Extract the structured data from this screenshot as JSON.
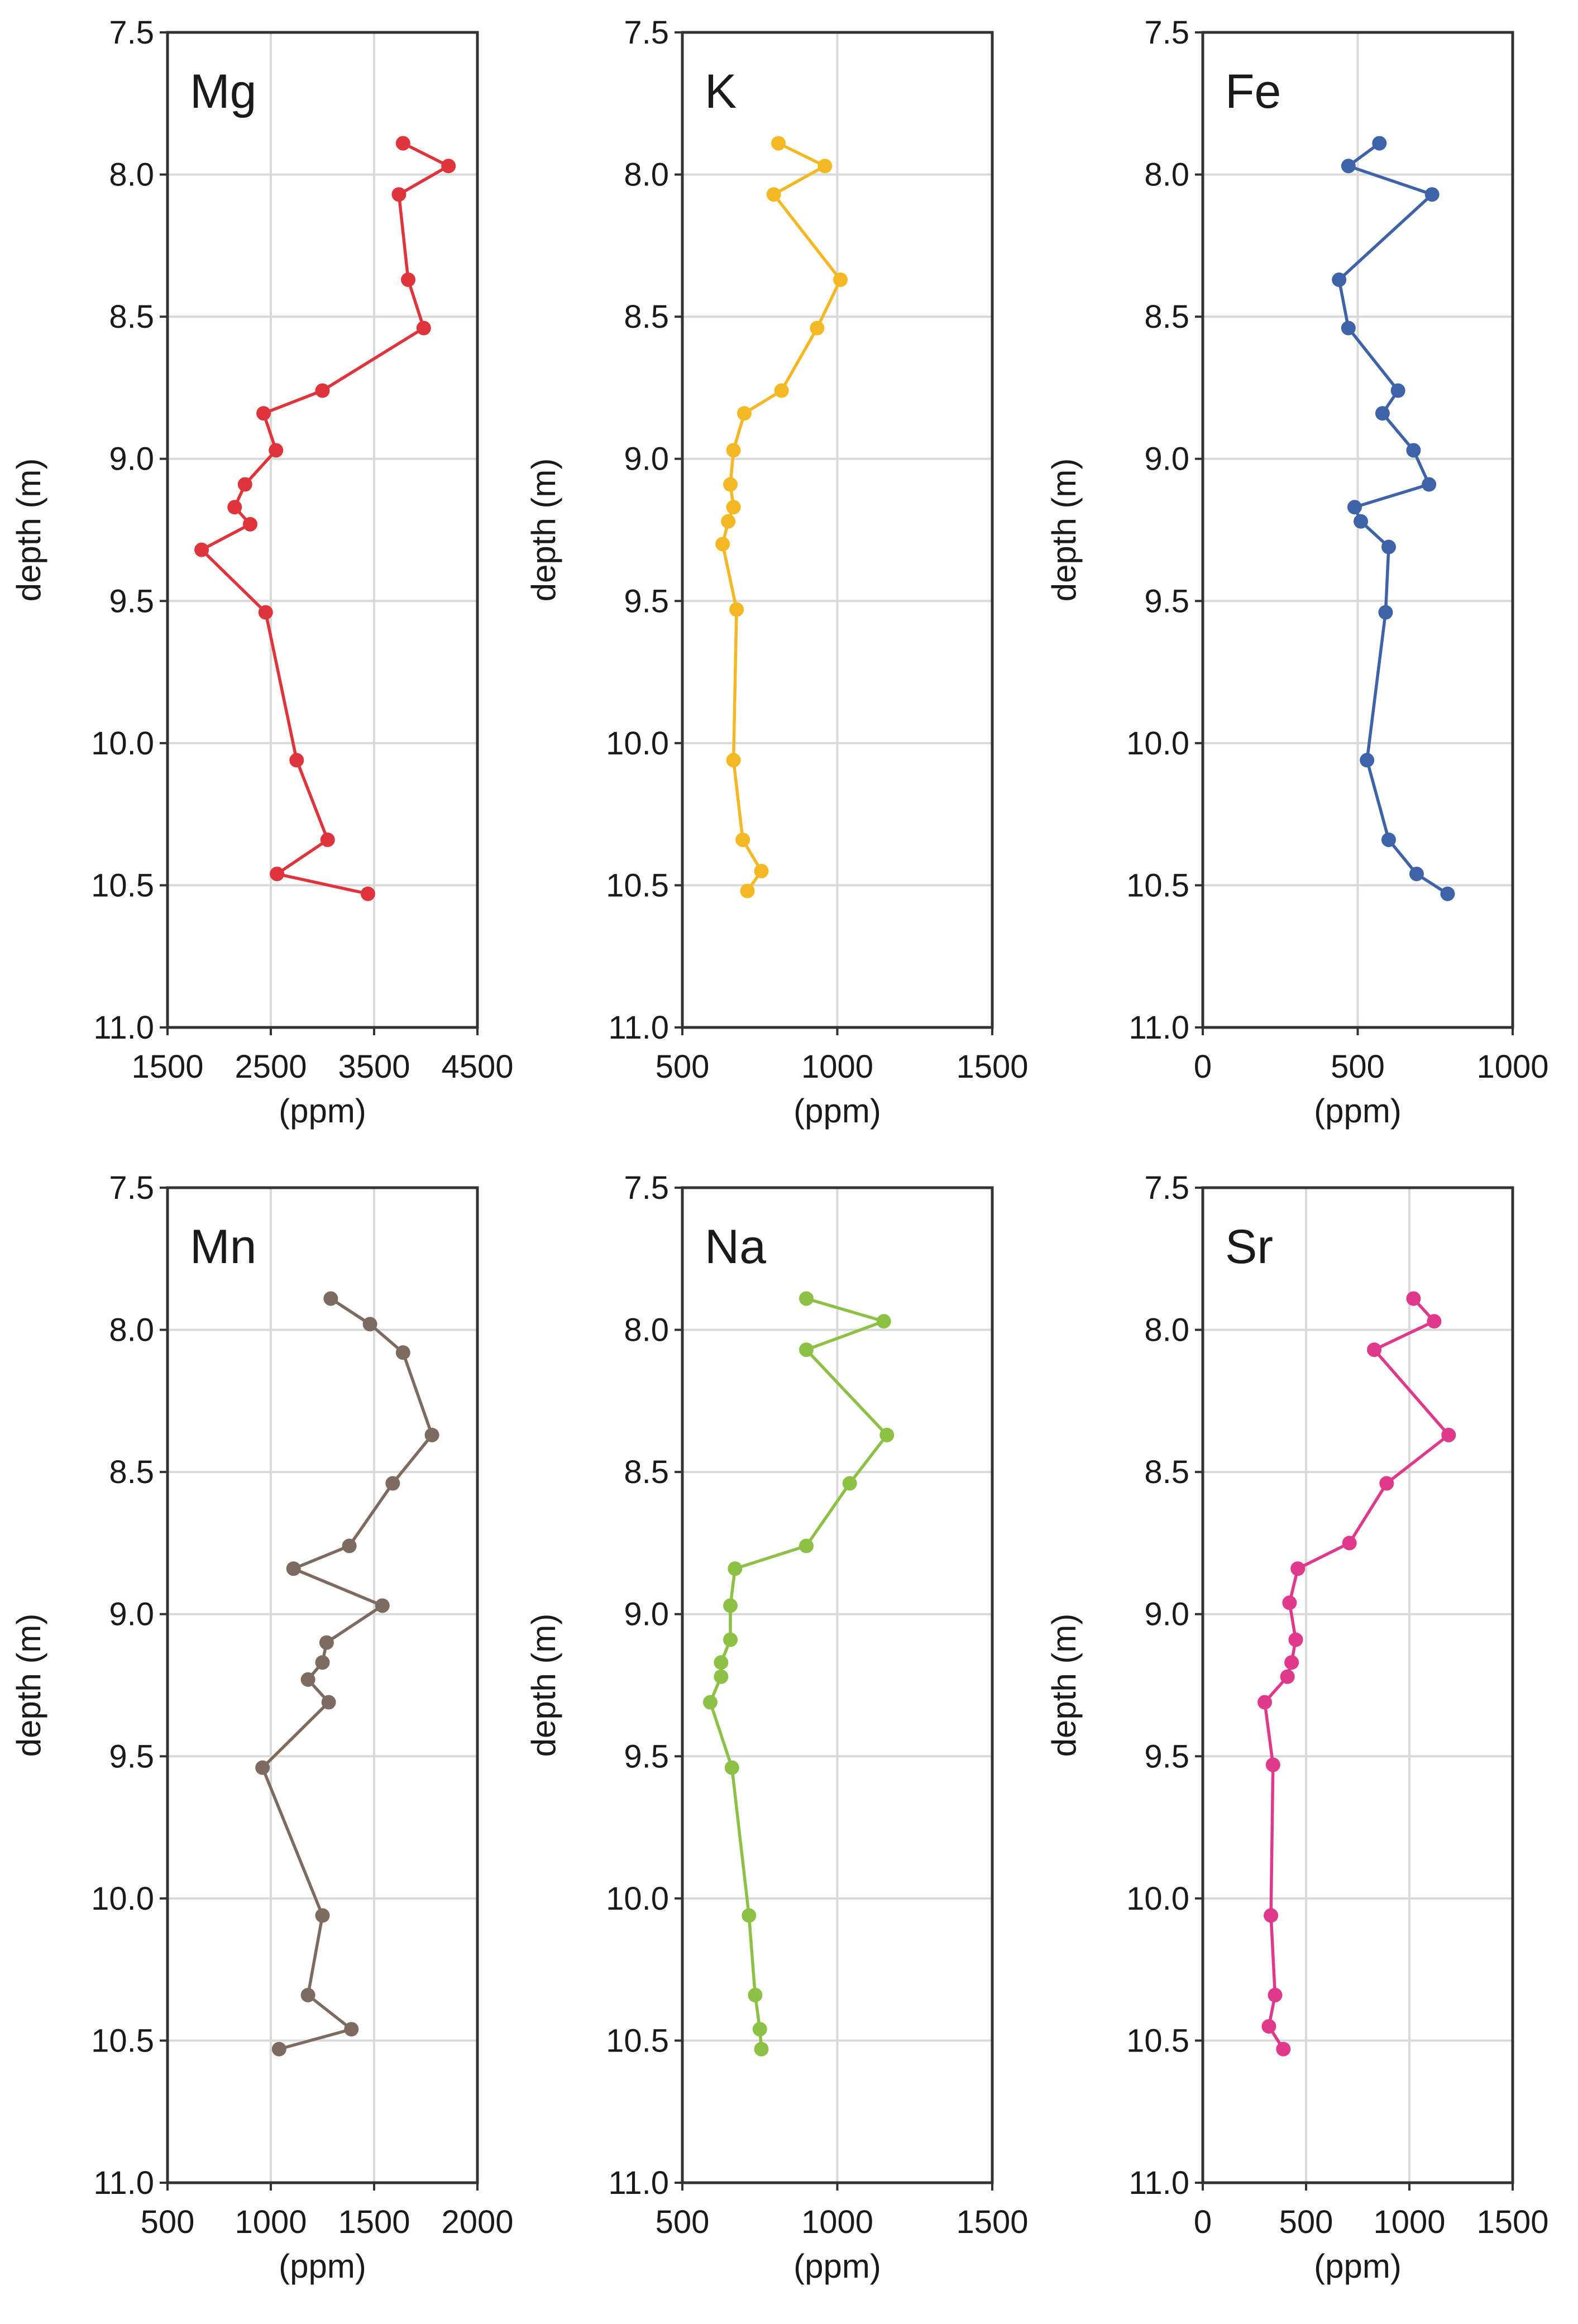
{
  "chart_data": [
    {
      "type": "line",
      "title": "Mg",
      "xlabel": "(ppm)",
      "ylabel": "depth (m)",
      "xlim": [
        1500,
        4500
      ],
      "xticks": [
        1500,
        2500,
        3500,
        4500
      ],
      "ylim": [
        7.5,
        11.0
      ],
      "yticks": [
        "7.5",
        "8.0",
        "8.5",
        "9.0",
        "9.5",
        "10.0",
        "10.5",
        "11.0"
      ],
      "color": "#e0343c",
      "points": [
        {
          "depth": 7.89,
          "value": 3780
        },
        {
          "depth": 7.97,
          "value": 4220
        },
        {
          "depth": 8.07,
          "value": 3740
        },
        {
          "depth": 8.37,
          "value": 3830
        },
        {
          "depth": 8.54,
          "value": 3980
        },
        {
          "depth": 8.76,
          "value": 3000
        },
        {
          "depth": 8.84,
          "value": 2430
        },
        {
          "depth": 8.97,
          "value": 2550
        },
        {
          "depth": 9.09,
          "value": 2250
        },
        {
          "depth": 9.17,
          "value": 2150
        },
        {
          "depth": 9.23,
          "value": 2300
        },
        {
          "depth": 9.32,
          "value": 1830
        },
        {
          "depth": 9.54,
          "value": 2450
        },
        {
          "depth": 10.06,
          "value": 2750
        },
        {
          "depth": 10.34,
          "value": 3050
        },
        {
          "depth": 10.46,
          "value": 2560
        },
        {
          "depth": 10.53,
          "value": 3440
        }
      ]
    },
    {
      "type": "line",
      "title": "K",
      "xlabel": "(ppm)",
      "ylabel": "depth (m)",
      "xlim": [
        500,
        1500
      ],
      "xticks": [
        500,
        1000,
        1500
      ],
      "ylim": [
        7.5,
        11.0
      ],
      "yticks": [
        "7.5",
        "8.0",
        "8.5",
        "9.0",
        "9.5",
        "10.0",
        "10.5",
        "11.0"
      ],
      "color": "#f5b825",
      "points": [
        {
          "depth": 7.89,
          "value": 810
        },
        {
          "depth": 7.97,
          "value": 960
        },
        {
          "depth": 8.07,
          "value": 795
        },
        {
          "depth": 8.37,
          "value": 1010
        },
        {
          "depth": 8.54,
          "value": 935
        },
        {
          "depth": 8.76,
          "value": 820
        },
        {
          "depth": 8.84,
          "value": 700
        },
        {
          "depth": 8.97,
          "value": 665
        },
        {
          "depth": 9.09,
          "value": 655
        },
        {
          "depth": 9.17,
          "value": 665
        },
        {
          "depth": 9.22,
          "value": 648
        },
        {
          "depth": 9.3,
          "value": 630
        },
        {
          "depth": 9.53,
          "value": 675
        },
        {
          "depth": 10.06,
          "value": 665
        },
        {
          "depth": 10.34,
          "value": 695
        },
        {
          "depth": 10.45,
          "value": 755
        },
        {
          "depth": 10.52,
          "value": 710
        }
      ]
    },
    {
      "type": "line",
      "title": "Fe",
      "xlabel": "(ppm)",
      "ylabel": "depth (m)",
      "xlim": [
        0,
        1000
      ],
      "xticks": [
        0,
        500,
        1000
      ],
      "ylim": [
        7.5,
        11.0
      ],
      "yticks": [
        "7.5",
        "8.0",
        "8.5",
        "9.0",
        "9.5",
        "10.0",
        "10.5",
        "11.0"
      ],
      "color": "#3e63a8",
      "points": [
        {
          "depth": 7.89,
          "value": 570
        },
        {
          "depth": 7.97,
          "value": 470
        },
        {
          "depth": 8.07,
          "value": 740
        },
        {
          "depth": 8.37,
          "value": 440
        },
        {
          "depth": 8.54,
          "value": 470
        },
        {
          "depth": 8.76,
          "value": 630
        },
        {
          "depth": 8.84,
          "value": 580
        },
        {
          "depth": 8.97,
          "value": 680
        },
        {
          "depth": 9.09,
          "value": 730
        },
        {
          "depth": 9.17,
          "value": 490
        },
        {
          "depth": 9.22,
          "value": 510
        },
        {
          "depth": 9.31,
          "value": 600
        },
        {
          "depth": 9.54,
          "value": 590
        },
        {
          "depth": 10.06,
          "value": 530
        },
        {
          "depth": 10.34,
          "value": 600
        },
        {
          "depth": 10.46,
          "value": 690
        },
        {
          "depth": 10.53,
          "value": 790
        }
      ]
    },
    {
      "type": "line",
      "title": "Mn",
      "xlabel": "(ppm)",
      "ylabel": "depth (m)",
      "xlim": [
        500,
        2000
      ],
      "xticks": [
        500,
        1000,
        1500,
        2000
      ],
      "ylim": [
        7.5,
        11.0
      ],
      "yticks": [
        "7.5",
        "8.0",
        "8.5",
        "9.0",
        "9.5",
        "10.0",
        "10.5",
        "11.0"
      ],
      "color": "#7d6b62",
      "points": [
        {
          "depth": 7.89,
          "value": 1290
        },
        {
          "depth": 7.98,
          "value": 1480
        },
        {
          "depth": 8.08,
          "value": 1640
        },
        {
          "depth": 8.37,
          "value": 1780
        },
        {
          "depth": 8.54,
          "value": 1590
        },
        {
          "depth": 8.76,
          "value": 1380
        },
        {
          "depth": 8.84,
          "value": 1110
        },
        {
          "depth": 8.97,
          "value": 1540
        },
        {
          "depth": 9.1,
          "value": 1270
        },
        {
          "depth": 9.17,
          "value": 1250
        },
        {
          "depth": 9.23,
          "value": 1180
        },
        {
          "depth": 9.31,
          "value": 1280
        },
        {
          "depth": 9.54,
          "value": 960
        },
        {
          "depth": 10.06,
          "value": 1250
        },
        {
          "depth": 10.34,
          "value": 1180
        },
        {
          "depth": 10.46,
          "value": 1390
        },
        {
          "depth": 10.53,
          "value": 1040
        }
      ]
    },
    {
      "type": "line",
      "title": "Na",
      "xlabel": "(ppm)",
      "ylabel": "depth (m)",
      "xlim": [
        500,
        1500
      ],
      "xticks": [
        500,
        1000,
        1500
      ],
      "ylim": [
        7.5,
        11.0
      ],
      "yticks": [
        "7.5",
        "8.0",
        "8.5",
        "9.0",
        "9.5",
        "10.0",
        "10.5",
        "11.0"
      ],
      "color": "#8dc146",
      "points": [
        {
          "depth": 7.89,
          "value": 900
        },
        {
          "depth": 7.97,
          "value": 1150
        },
        {
          "depth": 8.07,
          "value": 900
        },
        {
          "depth": 8.37,
          "value": 1160
        },
        {
          "depth": 8.54,
          "value": 1040
        },
        {
          "depth": 8.76,
          "value": 900
        },
        {
          "depth": 8.84,
          "value": 670
        },
        {
          "depth": 8.97,
          "value": 655
        },
        {
          "depth": 9.09,
          "value": 655
        },
        {
          "depth": 9.17,
          "value": 625
        },
        {
          "depth": 9.22,
          "value": 625
        },
        {
          "depth": 9.31,
          "value": 590
        },
        {
          "depth": 9.54,
          "value": 660
        },
        {
          "depth": 10.06,
          "value": 715
        },
        {
          "depth": 10.34,
          "value": 735
        },
        {
          "depth": 10.46,
          "value": 750
        },
        {
          "depth": 10.53,
          "value": 755
        }
      ]
    },
    {
      "type": "line",
      "title": "Sr",
      "xlabel": "(ppm)",
      "ylabel": "depth (m)",
      "xlim": [
        0,
        1500
      ],
      "xticks": [
        0,
        500,
        1000,
        1500
      ],
      "ylim": [
        7.5,
        11.0
      ],
      "yticks": [
        "7.5",
        "8.0",
        "8.5",
        "9.0",
        "9.5",
        "10.0",
        "10.5",
        "11.0"
      ],
      "color": "#e0388a",
      "points": [
        {
          "depth": 7.89,
          "value": 1020
        },
        {
          "depth": 7.97,
          "value": 1120
        },
        {
          "depth": 8.07,
          "value": 830
        },
        {
          "depth": 8.37,
          "value": 1190
        },
        {
          "depth": 8.54,
          "value": 890
        },
        {
          "depth": 8.75,
          "value": 710
        },
        {
          "depth": 8.84,
          "value": 460
        },
        {
          "depth": 8.96,
          "value": 420
        },
        {
          "depth": 9.09,
          "value": 450
        },
        {
          "depth": 9.17,
          "value": 430
        },
        {
          "depth": 9.22,
          "value": 410
        },
        {
          "depth": 9.31,
          "value": 300
        },
        {
          "depth": 9.53,
          "value": 340
        },
        {
          "depth": 10.06,
          "value": 330
        },
        {
          "depth": 10.34,
          "value": 350
        },
        {
          "depth": 10.45,
          "value": 320
        },
        {
          "depth": 10.53,
          "value": 390
        }
      ]
    }
  ]
}
